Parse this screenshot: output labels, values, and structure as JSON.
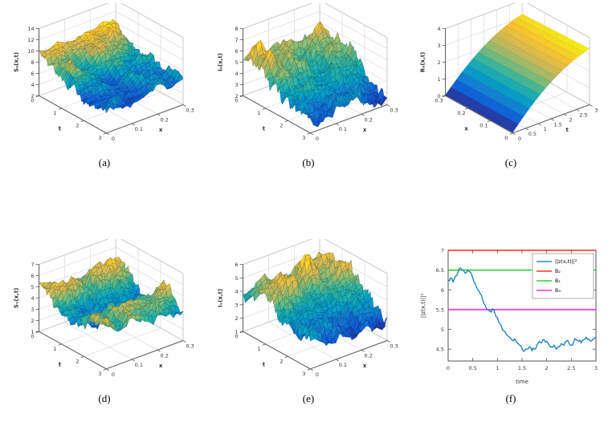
{
  "figure": {
    "background": "#ffffff",
    "captions": [
      "(a)",
      "(b)",
      "(c)",
      "(d)",
      "(e)",
      "(f)"
    ]
  },
  "colors": {
    "parula": [
      "#352a87",
      "#0f5cdd",
      "#1481d6",
      "#06a4ca",
      "#2eb7a4",
      "#87bf77",
      "#d1bb59",
      "#fec832",
      "#f9fb0e"
    ],
    "grid": "#d9d9d9",
    "frame": "#bcbcbc",
    "axis": "#555555",
    "text": "#333333",
    "blue": "#0072BD",
    "red": "#ff0000",
    "green": "#00cc00",
    "magenta": "#ff00ff"
  },
  "chart_data": [
    {
      "id": "a",
      "type": "surface3d",
      "style": "noisy",
      "zlabel": "Sᵤ(x,t)",
      "summary": "stochastic surface, starts near 10-12 at t=0 and decays to about 6 at t=3",
      "left_axis": {
        "label": "t",
        "range": [
          0,
          3
        ],
        "tick_labels": [
          "0",
          "1",
          "2",
          "3"
        ]
      },
      "right_axis": {
        "label": "x",
        "range": [
          0,
          0.3
        ],
        "tick_labels": [
          "0",
          "0.1",
          "0.2",
          "0.3"
        ]
      },
      "z_axis": {
        "range": [
          2,
          14
        ],
        "tick_labels": [
          "2",
          "4",
          "6",
          "8",
          "10",
          "12",
          "14"
        ]
      },
      "profile": [
        9.8,
        9.4,
        8.8,
        8.2,
        7.6,
        7.1,
        6.8,
        6.4,
        6.2,
        6.0
      ],
      "profile_axis": "u",
      "render": {
        "seed": 101,
        "walk": 1.6,
        "jitter": 0.9,
        "grid": [
          60,
          18
        ]
      }
    },
    {
      "id": "b",
      "type": "surface3d",
      "style": "noisy",
      "zlabel": "Iᵤ(x,t)",
      "summary": "stochastic surface, peaks near 7 around t=0.5 then decays to about 3 at t=3",
      "left_axis": {
        "label": "t",
        "range": [
          0,
          3
        ],
        "tick_labels": [
          "0",
          "1",
          "2",
          "3"
        ]
      },
      "right_axis": {
        "label": "x",
        "range": [
          0,
          0.3
        ],
        "tick_labels": [
          "0",
          "0.1",
          "0.2",
          "0.3"
        ]
      },
      "z_axis": {
        "range": [
          2,
          8
        ],
        "tick_labels": [
          "2",
          "3",
          "4",
          "5",
          "6",
          "7",
          "8"
        ]
      },
      "profile": [
        5.0,
        6.0,
        5.5,
        5.0,
        4.5,
        4.1,
        3.8,
        3.5,
        3.3,
        3.1
      ],
      "profile_axis": "u",
      "render": {
        "seed": 202,
        "walk": 1.2,
        "jitter": 0.7,
        "grid": [
          60,
          18
        ]
      }
    },
    {
      "id": "c",
      "type": "surface3d",
      "style": "smooth",
      "zlabel": "Rᵤ(x,t)",
      "summary": "smooth surface rising from 0 at t=0 to about 3.1 at t=3",
      "left_axis": {
        "label": "x",
        "range": [
          0.3,
          0
        ],
        "tick_labels": [
          "0.3",
          "0.2",
          "0.1",
          "0"
        ]
      },
      "right_axis": {
        "label": "t",
        "range": [
          0,
          3
        ],
        "tick_labels": [
          "0",
          "0.5",
          "1",
          "1.5",
          "2",
          "2.5",
          "3"
        ]
      },
      "z_axis": {
        "range": [
          0,
          4
        ],
        "tick_labels": [
          "0",
          "1",
          "2",
          "3",
          "4"
        ]
      },
      "profile": [
        0.02,
        0.55,
        1.05,
        1.5,
        1.9,
        2.25,
        2.55,
        2.8,
        3.0,
        3.15
      ],
      "profile_axis": "v",
      "render": {
        "grid": [
          36,
          14
        ]
      }
    },
    {
      "id": "d",
      "type": "surface3d",
      "style": "noisy",
      "zlabel": "Sᵥ(x,t)",
      "summary": "stochastic surface around 3-5 with a dip near t=1.3 and recovery toward t=3",
      "left_axis": {
        "label": "t",
        "range": [
          0,
          3
        ],
        "tick_labels": [
          "0",
          "1",
          "2",
          "3"
        ]
      },
      "right_axis": {
        "label": "x",
        "range": [
          0,
          0.3
        ],
        "tick_labels": [
          "0",
          "0.1",
          "0.2",
          "0.3"
        ]
      },
      "z_axis": {
        "range": [
          1,
          7
        ],
        "tick_labels": [
          "1",
          "2",
          "3",
          "4",
          "5",
          "6",
          "7"
        ]
      },
      "profile": [
        4.6,
        4.9,
        4.3,
        3.7,
        3.3,
        3.5,
        4.0,
        4.4,
        4.3,
        4.1
      ],
      "profile_axis": "u",
      "render": {
        "seed": 303,
        "walk": 1.0,
        "jitter": 0.6,
        "grid": [
          60,
          18
        ]
      }
    },
    {
      "id": "e",
      "type": "surface3d",
      "style": "noisy",
      "zlabel": "Iᵥ(x,t)",
      "summary": "stochastic surface, peaks near 5-6 around t=0.8 then decays to about 2 at t=3",
      "left_axis": {
        "label": "t",
        "range": [
          0,
          3
        ],
        "tick_labels": [
          "0",
          "1",
          "2",
          "3"
        ]
      },
      "right_axis": {
        "label": "x",
        "range": [
          0,
          0.3
        ],
        "tick_labels": [
          "0",
          "0.1",
          "0.2",
          "0.3"
        ]
      },
      "z_axis": {
        "range": [
          1,
          6
        ],
        "tick_labels": [
          "1",
          "2",
          "3",
          "4",
          "5",
          "6"
        ]
      },
      "profile": [
        3.8,
        4.4,
        4.9,
        4.6,
        4.2,
        3.7,
        3.2,
        2.9,
        2.6,
        2.3
      ],
      "profile_axis": "u",
      "render": {
        "seed": 404,
        "walk": 1.0,
        "jitter": 0.6,
        "grid": [
          60,
          18
        ]
      }
    },
    {
      "id": "f",
      "type": "line",
      "xlabel": "time",
      "ylabel": "||z(x,t)||²",
      "x_axis": {
        "range": [
          0,
          3
        ],
        "tick_labels": [
          "0",
          "0.5",
          "1",
          "1.5",
          "2",
          "2.5",
          "3"
        ]
      },
      "y_axis": {
        "range": [
          4.2,
          7
        ],
        "tick_labels": [
          "4.5",
          "5",
          "5.5",
          "6",
          "6.5",
          "7"
        ]
      },
      "series": {
        "name": "||z(x,t)||²",
        "color_key": "blue",
        "t_start": 0,
        "t_step": 0.05,
        "values": [
          6.25,
          6.3,
          6.2,
          6.35,
          6.45,
          6.55,
          6.5,
          6.42,
          6.5,
          6.45,
          6.3,
          6.15,
          6.0,
          5.9,
          5.75,
          5.62,
          5.5,
          5.45,
          5.52,
          5.4,
          5.3,
          5.15,
          5.0,
          4.95,
          4.85,
          4.8,
          4.72,
          4.76,
          4.66,
          4.6,
          4.52,
          4.46,
          4.5,
          4.56,
          4.46,
          4.5,
          4.6,
          4.7,
          4.66,
          4.74,
          4.7,
          4.6,
          4.56,
          4.6,
          4.5,
          4.56,
          4.64,
          4.6,
          4.7,
          4.66,
          4.6,
          4.7,
          4.74,
          4.7,
          4.66,
          4.74,
          4.8,
          4.76,
          4.7,
          4.76,
          4.8
        ]
      },
      "hlines": [
        {
          "name": "B₂",
          "value": 7.0,
          "color_key": "red"
        },
        {
          "name": "B₁",
          "value": 6.5,
          "color_key": "green"
        },
        {
          "name": "B₃",
          "value": 5.5,
          "color_key": "magenta"
        }
      ],
      "legend": {
        "position": "top-right",
        "entries": [
          "||z(x,t)||²",
          "B₂",
          "B₁",
          "B₃"
        ]
      },
      "render": {
        "seed": 505,
        "jitter": 0.05
      }
    }
  ]
}
